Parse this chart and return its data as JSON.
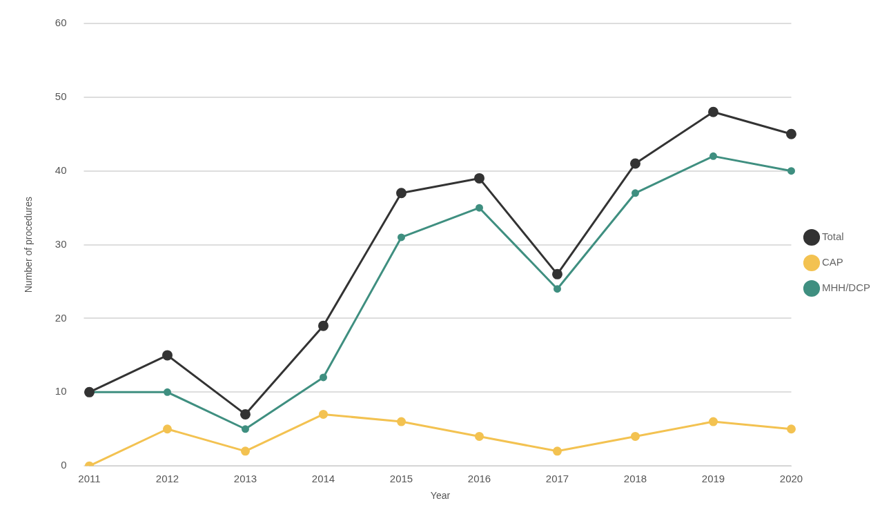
{
  "chart_data": {
    "type": "line",
    "xlabel": "Year",
    "ylabel": "Number of procedures",
    "categories": [
      "2011",
      "2012",
      "2013",
      "2014",
      "2015",
      "2016",
      "2017",
      "2018",
      "2019",
      "2020"
    ],
    "series": [
      {
        "name": "MHH/DCP",
        "color": "#3f8f80",
        "values": [
          10,
          10,
          5,
          12,
          31,
          35,
          24,
          37,
          42,
          40
        ]
      },
      {
        "name": "CAP",
        "color": "#f3c251",
        "values": [
          0,
          5,
          2,
          7,
          6,
          4,
          2,
          4,
          6,
          5
        ]
      },
      {
        "name": "Total",
        "color": "#333333",
        "values": [
          10,
          15,
          7,
          19,
          37,
          39,
          26,
          41,
          48,
          45
        ]
      }
    ],
    "ylim": [
      0,
      60
    ],
    "yticks": [
      0,
      10,
      20,
      30,
      40,
      50,
      60
    ],
    "grid": "y",
    "legend": "right",
    "marker": "circle",
    "line_style": "solid"
  }
}
